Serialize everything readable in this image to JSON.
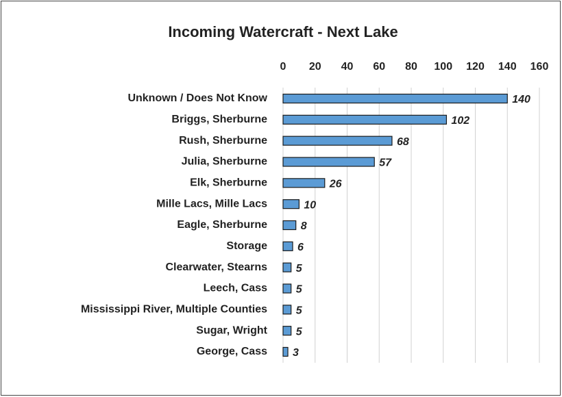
{
  "chart_data": {
    "type": "bar",
    "orientation": "horizontal",
    "title": "Incoming Watercraft - Next Lake",
    "categories": [
      "Unknown / Does Not Know",
      "Briggs, Sherburne",
      "Rush, Sherburne",
      "Julia, Sherburne",
      "Elk, Sherburne",
      "Mille Lacs, Mille Lacs",
      "Eagle, Sherburne",
      "Storage",
      "Clearwater, Stearns",
      "Leech, Cass",
      "Mississippi River, Multiple Counties",
      "Sugar, Wright",
      "George, Cass"
    ],
    "values": [
      140,
      102,
      68,
      57,
      26,
      10,
      8,
      6,
      5,
      5,
      5,
      5,
      3
    ],
    "color": "#5b9bd5",
    "xlim": [
      0,
      160
    ],
    "xticks": [
      0,
      20,
      40,
      60,
      80,
      100,
      120,
      140,
      160
    ],
    "grid": true
  }
}
